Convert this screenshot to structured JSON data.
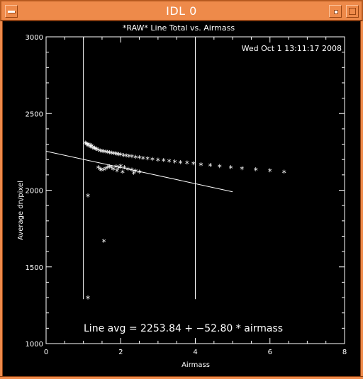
{
  "window": {
    "title": "IDL 0"
  },
  "plot": {
    "timestamp": "Wed Oct  1 13:11:17 2008",
    "fit_label": "Line avg = 2253.84 + −52.80 * airmass"
  },
  "colors": {
    "titlebar": "#ee8a4a",
    "plot_bg": "#000000",
    "ink": "#ffffff"
  },
  "chart_data": {
    "type": "scatter",
    "title": "*RAW* Line Total vs. Airmass",
    "xlabel": "Airmass",
    "ylabel": "Average dn/pixel",
    "xlim": [
      0,
      8
    ],
    "ylim": [
      1000,
      3000
    ],
    "xticks": [
      0,
      2,
      4,
      6,
      8
    ],
    "yticks": [
      1000,
      1500,
      2000,
      2500,
      3000
    ],
    "xtick_labels": [
      "0",
      "2",
      "4",
      "6",
      "8"
    ],
    "ytick_labels": [
      "1000",
      "1500",
      "2000",
      "2500",
      "3000"
    ],
    "vertical_lines_x": [
      1.0,
      4.0
    ],
    "fit_line": {
      "intercept": 2253.84,
      "slope": -52.8,
      "x_range": [
        0,
        5.0
      ]
    },
    "points": [
      [
        1.05,
        2300
      ],
      [
        1.08,
        2295
      ],
      [
        1.1,
        2290
      ],
      [
        1.12,
        2285
      ],
      [
        1.15,
        2290
      ],
      [
        1.18,
        2280
      ],
      [
        1.2,
        2275
      ],
      [
        1.22,
        2285
      ],
      [
        1.25,
        2270
      ],
      [
        1.28,
        2265
      ],
      [
        1.3,
        2268
      ],
      [
        1.33,
        2260
      ],
      [
        1.36,
        2262
      ],
      [
        1.4,
        2255
      ],
      [
        1.45,
        2250
      ],
      [
        1.5,
        2248
      ],
      [
        1.55,
        2245
      ],
      [
        1.6,
        2242
      ],
      [
        1.65,
        2240
      ],
      [
        1.7,
        2238
      ],
      [
        1.75,
        2235
      ],
      [
        1.8,
        2233
      ],
      [
        1.85,
        2230
      ],
      [
        1.9,
        2228
      ],
      [
        1.95,
        2226
      ],
      [
        2.0,
        2224
      ],
      [
        2.08,
        2220
      ],
      [
        2.15,
        2218
      ],
      [
        2.22,
        2215
      ],
      [
        2.3,
        2212
      ],
      [
        2.4,
        2208
      ],
      [
        2.5,
        2205
      ],
      [
        2.6,
        2202
      ],
      [
        2.72,
        2198
      ],
      [
        2.85,
        2195
      ],
      [
        3.0,
        2190
      ],
      [
        3.15,
        2186
      ],
      [
        3.3,
        2182
      ],
      [
        3.45,
        2178
      ],
      [
        3.6,
        2174
      ],
      [
        3.78,
        2170
      ],
      [
        3.95,
        2166
      ],
      [
        4.15,
        2160
      ],
      [
        4.4,
        2155
      ],
      [
        4.65,
        2148
      ],
      [
        4.95,
        2142
      ],
      [
        5.25,
        2135
      ],
      [
        5.62,
        2127
      ],
      [
        6.0,
        2120
      ],
      [
        6.38,
        2110
      ],
      [
        1.4,
        2140
      ],
      [
        1.45,
        2130
      ],
      [
        1.48,
        2125
      ],
      [
        1.55,
        2128
      ],
      [
        1.6,
        2135
      ],
      [
        1.65,
        2140
      ],
      [
        1.7,
        2145
      ],
      [
        1.75,
        2140
      ],
      [
        1.8,
        2130
      ],
      [
        1.88,
        2145
      ],
      [
        1.95,
        2138
      ],
      [
        2.0,
        2150
      ],
      [
        2.1,
        2140
      ],
      [
        2.2,
        2130
      ],
      [
        2.3,
        2125
      ],
      [
        2.4,
        2118
      ],
      [
        2.5,
        2110
      ],
      [
        1.9,
        2120
      ],
      [
        2.05,
        2110
      ],
      [
        2.35,
        2105
      ],
      [
        1.12,
        1955
      ],
      [
        1.55,
        1660
      ],
      [
        1.12,
        1290
      ]
    ]
  }
}
